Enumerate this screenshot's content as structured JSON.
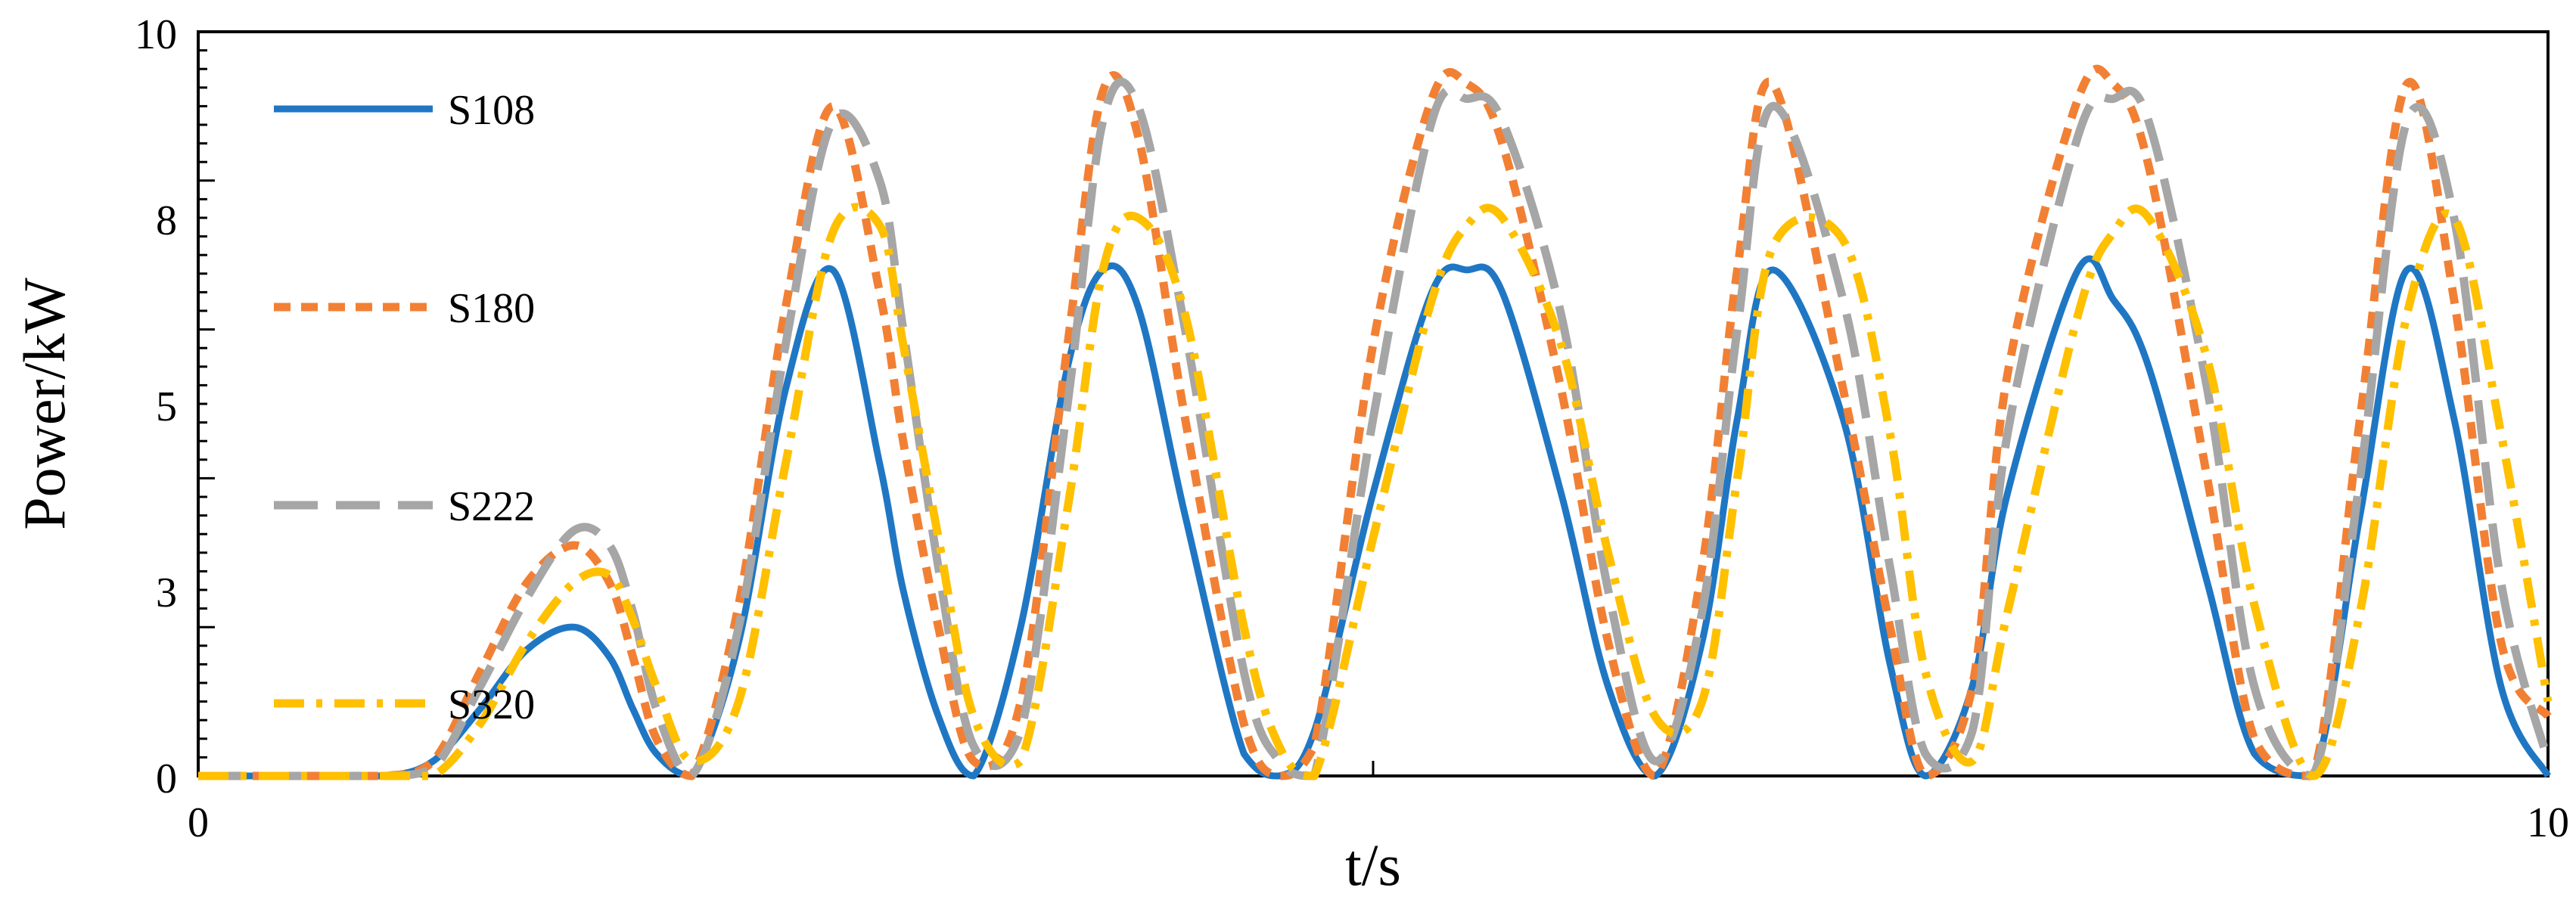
{
  "chart_data": {
    "type": "line",
    "xlabel": "t/s",
    "ylabel": "Power/kW",
    "xlim": [
      0,
      10
    ],
    "ylim": [
      0,
      10
    ],
    "x_ticks": [
      "0",
      "10"
    ],
    "y_ticks": [
      "0",
      "3",
      "5",
      "8",
      "10"
    ],
    "grid": false,
    "legend_position": "top-left",
    "x": [
      0,
      0.5,
      0.8,
      1.0,
      1.2,
      1.4,
      1.6,
      1.75,
      1.85,
      1.95,
      2.1,
      2.3,
      2.5,
      2.7,
      2.9,
      3.0,
      3.15,
      3.3,
      3.5,
      3.7,
      3.85,
      4.0,
      4.2,
      4.45,
      4.6,
      4.75,
      5.0,
      5.25,
      5.4,
      5.55,
      5.8,
      6.0,
      6.2,
      6.4,
      6.55,
      6.7,
      7.0,
      7.2,
      7.35,
      7.55,
      7.7,
      8.0,
      8.15,
      8.3,
      8.55,
      8.75,
      9.0,
      9.2,
      9.4,
      9.6,
      9.8,
      10.0
    ],
    "series": [
      {
        "name": "S108",
        "color": "#1F77C4",
        "dash": "solid",
        "values": [
          0,
          0,
          0,
          0.2,
          0.9,
          1.7,
          2.0,
          1.6,
          0.9,
          0.3,
          0,
          1.8,
          5.2,
          6.8,
          4.2,
          2.5,
          0.8,
          0,
          2.0,
          5.5,
          6.8,
          6.3,
          3.5,
          0.3,
          0,
          0.6,
          3.8,
          6.5,
          6.8,
          6.5,
          3.8,
          1.2,
          0,
          1.8,
          4.8,
          6.8,
          4.8,
          1.5,
          0,
          1.2,
          3.8,
          6.8,
          6.4,
          5.5,
          2.6,
          0.3,
          0,
          3.5,
          6.8,
          4.8,
          1.2,
          0
        ]
      },
      {
        "name": "S180",
        "color": "#F28034",
        "dash": "short-dash",
        "values": [
          0,
          0,
          0,
          0.2,
          1.4,
          2.6,
          3.1,
          2.6,
          1.6,
          0.5,
          0,
          2.3,
          6.3,
          9.0,
          6.5,
          4.5,
          2.0,
          0.2,
          1.0,
          5.8,
          9.2,
          8.6,
          4.8,
          0.7,
          0,
          0.4,
          5.8,
          9.1,
          9.3,
          8.5,
          5.2,
          1.8,
          0,
          2.8,
          6.8,
          9.3,
          5.2,
          2.0,
          0,
          1.2,
          5.4,
          9.1,
          9.3,
          8.2,
          4.0,
          0.5,
          0,
          4.8,
          9.3,
          6.4,
          1.8,
          0.8
        ]
      },
      {
        "name": "S222",
        "color": "#A6A6A6",
        "dash": "long-dash",
        "values": [
          0,
          0,
          0,
          0.1,
          1.2,
          2.4,
          3.3,
          3.1,
          2.2,
          0.9,
          0,
          2.0,
          5.8,
          8.8,
          8.0,
          6.0,
          2.8,
          0.4,
          0.6,
          5.0,
          8.8,
          9.0,
          6.0,
          1.4,
          0.2,
          0,
          4.8,
          8.8,
          9.1,
          8.8,
          6.2,
          2.5,
          0.2,
          2.2,
          6.0,
          9.0,
          6.4,
          2.8,
          0.3,
          0.6,
          4.6,
          8.6,
          9.1,
          8.8,
          5.2,
          1.2,
          0,
          4.0,
          8.8,
          7.5,
          2.6,
          0.2
        ]
      },
      {
        "name": "S320",
        "color": "#FFC000",
        "dash": "dash-dot",
        "values": [
          0,
          0,
          0,
          0,
          0.7,
          1.8,
          2.6,
          2.7,
          2.1,
          1.2,
          0.2,
          1.0,
          4.2,
          7.3,
          7.4,
          5.8,
          3.2,
          0.8,
          0.2,
          3.6,
          6.8,
          7.5,
          6.2,
          2.0,
          0.4,
          0,
          3.2,
          6.4,
          7.4,
          7.5,
          5.8,
          3.0,
          0.8,
          1.0,
          4.0,
          7.1,
          7.2,
          4.6,
          1.4,
          0.2,
          2.2,
          6.2,
          7.3,
          7.5,
          5.6,
          2.3,
          0,
          2.2,
          6.2,
          7.5,
          4.6,
          1.0
        ]
      }
    ]
  }
}
